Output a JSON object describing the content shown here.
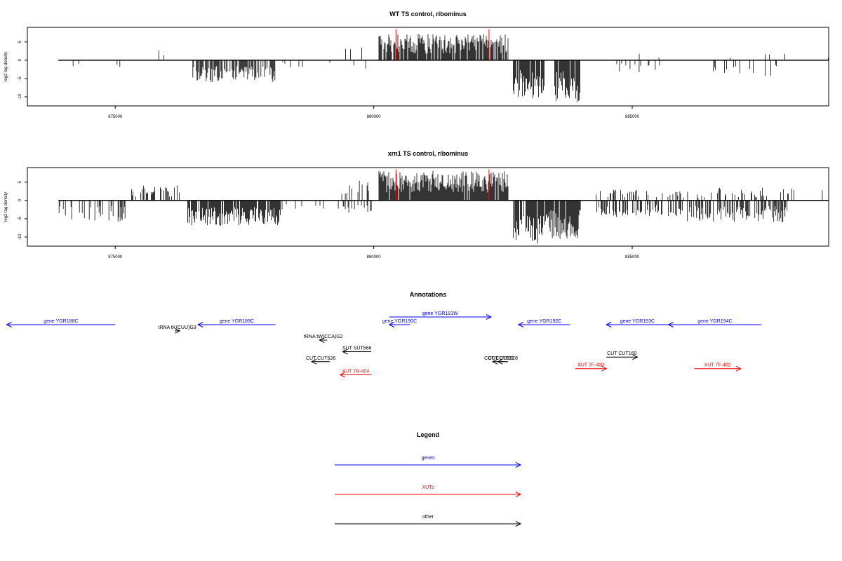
{
  "chart_data": [
    {
      "type": "bar",
      "title": "WT TS control, ribominus",
      "ylabel": "log2 tag density",
      "xlim": [
        873300,
        888800
      ],
      "ylim": [
        -12.5,
        9
      ],
      "x_ticks": [
        875000,
        880000,
        885000
      ],
      "x_tick_labels": [
        "875000",
        "880000",
        "885000"
      ],
      "y_ticks": [
        -10,
        -5,
        0,
        5
      ],
      "y_tick_labels": [
        "-10",
        "-5",
        "0",
        "5"
      ],
      "grid": false,
      "baseline": {
        "x_start": 873900,
        "x_end": 888800,
        "y": 0
      },
      "markers": [
        {
          "x": 880430,
          "y": 8.5,
          "color": "#ff0000"
        },
        {
          "x": 882230,
          "y": 8.5,
          "color": "#ff0000"
        }
      ],
      "segments": [
        {
          "x_start": 873900,
          "x_end": 874600,
          "sign": -1,
          "max": 3.2,
          "density": 0.06,
          "seed": 11
        },
        {
          "x_start": 874600,
          "x_end": 875200,
          "sign": -1,
          "max": 2.8,
          "density": 0.05,
          "seed": 12
        },
        {
          "x_start": 875300,
          "x_end": 876200,
          "sign": 1,
          "max": 3.0,
          "density": 0.03,
          "seed": 13
        },
        {
          "x_start": 876500,
          "x_end": 878100,
          "sign": -1,
          "max": 6.0,
          "density": 0.75,
          "seed": 14
        },
        {
          "x_start": 878200,
          "x_end": 879200,
          "sign": -1,
          "max": 2.0,
          "density": 0.03,
          "seed": 15
        },
        {
          "x_start": 879400,
          "x_end": 879900,
          "sign": 1,
          "max": 3.5,
          "density": 0.08,
          "seed": 16
        },
        {
          "x_start": 879600,
          "x_end": 880000,
          "sign": -1,
          "max": 2.5,
          "density": 0.08,
          "seed": 17
        },
        {
          "x_start": 880100,
          "x_end": 882600,
          "sign": 1,
          "max": 7.2,
          "density": 0.85,
          "seed": 18
        },
        {
          "x_start": 882700,
          "x_end": 883300,
          "sign": -1,
          "max": 10.8,
          "density": 0.9,
          "seed": 19
        },
        {
          "x_start": 883500,
          "x_end": 884000,
          "sign": -1,
          "max": 11.5,
          "density": 0.9,
          "seed": 20
        },
        {
          "x_start": 884300,
          "x_end": 884600,
          "sign": 1,
          "max": 2.0,
          "density": 0.03,
          "seed": 21
        },
        {
          "x_start": 884700,
          "x_end": 886000,
          "sign": -1,
          "max": 3.5,
          "density": 0.1,
          "seed": 22
        },
        {
          "x_start": 885000,
          "x_end": 886500,
          "sign": 1,
          "max": 2.0,
          "density": 0.04,
          "seed": 23
        },
        {
          "x_start": 886500,
          "x_end": 888000,
          "sign": -1,
          "max": 4.5,
          "density": 0.12,
          "seed": 24
        },
        {
          "x_start": 886800,
          "x_end": 888000,
          "sign": 1,
          "max": 2.0,
          "density": 0.05,
          "seed": 25
        },
        {
          "x_start": 888600,
          "x_end": 888800,
          "sign": 1,
          "max": 1.8,
          "density": 0.05,
          "seed": 26
        }
      ]
    },
    {
      "type": "bar",
      "title": "xrn1 TS control, ribominus",
      "ylabel": "log2 tag density",
      "xlim": [
        873300,
        888800
      ],
      "ylim": [
        -12.5,
        9
      ],
      "x_ticks": [
        875000,
        880000,
        885000
      ],
      "x_tick_labels": [
        "875000",
        "880000",
        "885000"
      ],
      "y_ticks": [
        -10,
        -5,
        0,
        5
      ],
      "y_tick_labels": [
        "-10",
        "-5",
        "0",
        "5"
      ],
      "grid": false,
      "baseline": {
        "x_start": 873900,
        "x_end": 888800,
        "y": 0
      },
      "markers": [
        {
          "x": 880430,
          "y": 8.5,
          "color": "#ff0000"
        },
        {
          "x": 882230,
          "y": 8.5,
          "color": "#ff0000"
        }
      ],
      "segments": [
        {
          "x_start": 873900,
          "x_end": 875200,
          "sign": -1,
          "max": 6.0,
          "density": 0.3,
          "seed": 31
        },
        {
          "x_start": 875300,
          "x_end": 876300,
          "sign": 1,
          "max": 4.2,
          "density": 0.35,
          "seed": 32
        },
        {
          "x_start": 876400,
          "x_end": 878200,
          "sign": -1,
          "max": 7.0,
          "density": 0.85,
          "seed": 33
        },
        {
          "x_start": 878200,
          "x_end": 879100,
          "sign": -1,
          "max": 2.5,
          "density": 0.05,
          "seed": 34
        },
        {
          "x_start": 879300,
          "x_end": 879900,
          "sign": 1,
          "max": 5.5,
          "density": 0.2,
          "seed": 35
        },
        {
          "x_start": 879300,
          "x_end": 880000,
          "sign": -1,
          "max": 3.5,
          "density": 0.3,
          "seed": 36
        },
        {
          "x_start": 880100,
          "x_end": 882600,
          "sign": 1,
          "max": 8.2,
          "density": 0.95,
          "seed": 37
        },
        {
          "x_start": 882700,
          "x_end": 883400,
          "sign": -1,
          "max": 12.0,
          "density": 0.9,
          "seed": 38
        },
        {
          "x_start": 883400,
          "x_end": 884000,
          "sign": -1,
          "max": 10.5,
          "density": 0.9,
          "seed": 39
        },
        {
          "x_start": 884300,
          "x_end": 885500,
          "sign": 1,
          "max": 3.0,
          "density": 0.25,
          "seed": 40
        },
        {
          "x_start": 884300,
          "x_end": 886000,
          "sign": -1,
          "max": 4.5,
          "density": 0.45,
          "seed": 41
        },
        {
          "x_start": 885500,
          "x_end": 886500,
          "sign": 1,
          "max": 2.5,
          "density": 0.2,
          "seed": 42
        },
        {
          "x_start": 886000,
          "x_end": 888000,
          "sign": -1,
          "max": 6.0,
          "density": 0.5,
          "seed": 43
        },
        {
          "x_start": 886500,
          "x_end": 888200,
          "sign": 1,
          "max": 3.5,
          "density": 0.25,
          "seed": 44
        },
        {
          "x_start": 888500,
          "x_end": 888800,
          "sign": 1,
          "max": 3.2,
          "density": 0.1,
          "seed": 45
        }
      ]
    }
  ],
  "annotations": {
    "title": "Annotations",
    "xlim": [
      873300,
      888800
    ],
    "items": [
      {
        "label": "gene YGR188C",
        "x_start": 875000,
        "x_end": 872900,
        "color": "#0000ff",
        "row": 0
      },
      {
        "label": "gene YGR189C",
        "x_start": 878100,
        "x_end": 876600,
        "color": "#0000ff",
        "row": 0
      },
      {
        "label": "gene YGR190C",
        "x_start": 880700,
        "x_end": 880300,
        "color": "#0000ff",
        "row": 0
      },
      {
        "label": "gene YGR191W",
        "x_start": 880300,
        "x_end": 882270,
        "color": "#0000ff",
        "row": -1
      },
      {
        "label": "gene YGR192C",
        "x_start": 883800,
        "x_end": 882800,
        "color": "#0000ff",
        "row": 0
      },
      {
        "label": "gene YGR193C",
        "x_start": 885700,
        "x_end": 884500,
        "color": "#0000ff",
        "row": 0
      },
      {
        "label": "gene YGR194C",
        "x_start": 887500,
        "x_end": 885700,
        "color": "#0000ff",
        "row": 0
      },
      {
        "label": "tRNA tK(CUU)G3",
        "x_start": 876150,
        "x_end": 876250,
        "color": "#000000",
        "row": 0.8
      },
      {
        "label": "tRNA tW(CCA)G2",
        "x_start": 879100,
        "x_end": 878950,
        "color": "#000000",
        "row": 2.0
      },
      {
        "label": "SUT SUT566",
        "x_start": 879950,
        "x_end": 879400,
        "color": "#000000",
        "row": 3.5
      },
      {
        "label": "CUT CUT626",
        "x_start": 879150,
        "x_end": 878800,
        "color": "#000000",
        "row": 4.8
      },
      {
        "label": "CUT CUT627",
        "x_start": 882550,
        "x_end": 882300,
        "color": "#000000",
        "row": 4.8
      },
      {
        "label": "CUT CUT628",
        "x_start": 882600,
        "x_end": 882400,
        "color": "#000000",
        "row": 4.8
      },
      {
        "label": "CUT CUT160",
        "x_start": 884500,
        "x_end": 885100,
        "color": "#000000",
        "row": 4.2
      },
      {
        "label": "XUT 7R-404",
        "x_start": 879950,
        "x_end": 879350,
        "color": "#ff0000",
        "row": 6.5
      },
      {
        "label": "XUT 7F-400",
        "x_start": 883900,
        "x_end": 884500,
        "color": "#ff0000",
        "row": 5.7
      },
      {
        "label": "XUT 7F-402",
        "x_start": 886200,
        "x_end": 887100,
        "color": "#ff0000",
        "row": 5.7
      }
    ]
  },
  "legend": {
    "title": "Legend",
    "items": [
      {
        "label": "genes",
        "color": "#0000ff"
      },
      {
        "label": "XUTs",
        "color": "#ff0000"
      },
      {
        "label": "other",
        "color": "#000000"
      }
    ]
  }
}
